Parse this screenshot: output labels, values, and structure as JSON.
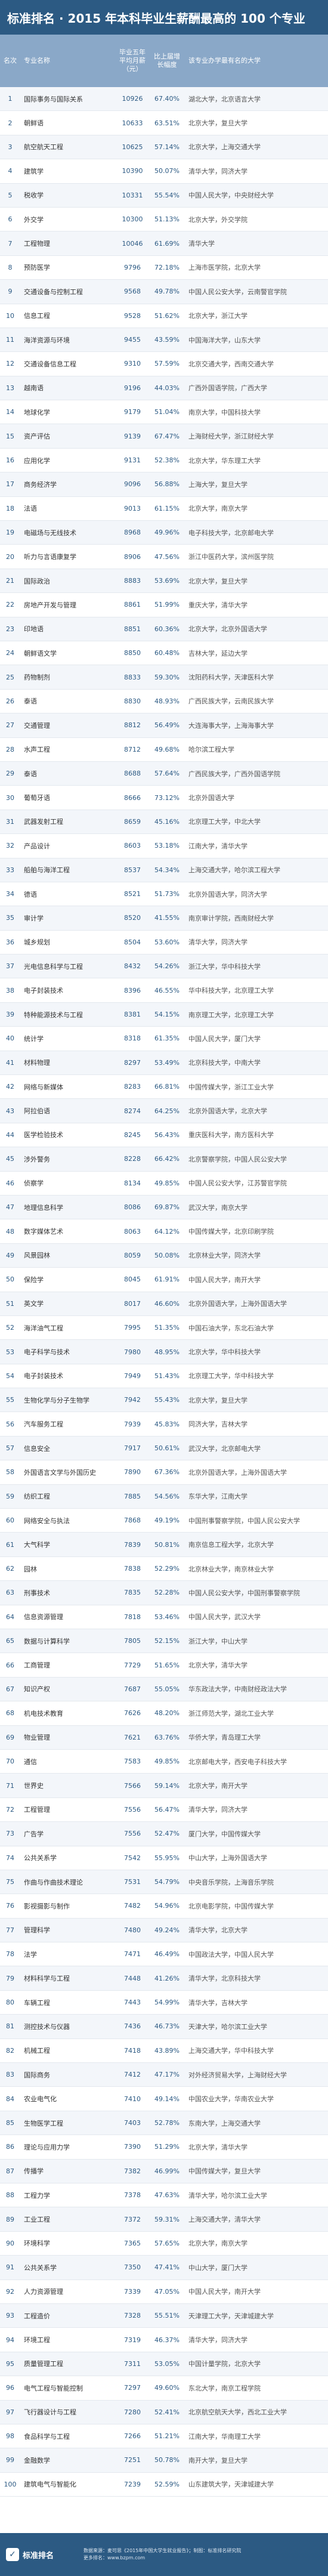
{
  "title": "标准排名 · 2015 年本科毕业生薪酬最高的 100 个专业",
  "header": {
    "rank": "名次",
    "major": "专业名称",
    "salary": "毕业五年平均月薪（元）",
    "ratio": "比上届增长幅度",
    "unis": "该专业办学最有名的大学"
  },
  "rows": [
    {
      "rank": "1",
      "major": "国际事务与国际关系",
      "salary": "10926",
      "ratio": "67.40%",
      "unis": "湖北大学，北京语言大学"
    },
    {
      "rank": "2",
      "major": "朝鲜语",
      "salary": "10633",
      "ratio": "63.51%",
      "unis": "北京大学，复旦大学"
    },
    {
      "rank": "3",
      "major": "航空航天工程",
      "salary": "10625",
      "ratio": "57.14%",
      "unis": "北京大学，上海交通大学"
    },
    {
      "rank": "4",
      "major": "建筑学",
      "salary": "10390",
      "ratio": "50.07%",
      "unis": "清华大学，同济大学"
    },
    {
      "rank": "5",
      "major": "税收学",
      "salary": "10331",
      "ratio": "55.54%",
      "unis": "中国人民大学，中央财经大学"
    },
    {
      "rank": "6",
      "major": "外交学",
      "salary": "10300",
      "ratio": "51.13%",
      "unis": "北京大学，外交学院"
    },
    {
      "rank": "7",
      "major": "工程物理",
      "salary": "10046",
      "ratio": "61.69%",
      "unis": "清华大学"
    },
    {
      "rank": "8",
      "major": "预防医学",
      "salary": "9796",
      "ratio": "72.18%",
      "unis": "上海市医学院，北京大学"
    },
    {
      "rank": "9",
      "major": "交通设备与控制工程",
      "salary": "9568",
      "ratio": "49.78%",
      "unis": "中国人民公安大学，云南警官学院"
    },
    {
      "rank": "10",
      "major": "信息工程",
      "salary": "9528",
      "ratio": "51.62%",
      "unis": "北京大学，浙江大学"
    },
    {
      "rank": "11",
      "major": "海洋资源与环境",
      "salary": "9455",
      "ratio": "43.59%",
      "unis": "中国海洋大学，山东大学"
    },
    {
      "rank": "12",
      "major": "交通设备信息工程",
      "salary": "9310",
      "ratio": "57.59%",
      "unis": "北京交通大学，西南交通大学"
    },
    {
      "rank": "13",
      "major": "越南语",
      "salary": "9196",
      "ratio": "44.03%",
      "unis": "广西外国语学院，广西大学"
    },
    {
      "rank": "14",
      "major": "地球化学",
      "salary": "9179",
      "ratio": "51.04%",
      "unis": "南京大学，中国科技大学"
    },
    {
      "rank": "15",
      "major": "资产评估",
      "salary": "9139",
      "ratio": "67.47%",
      "unis": "上海财经大学，浙江财经大学"
    },
    {
      "rank": "16",
      "major": "应用化学",
      "salary": "9131",
      "ratio": "52.38%",
      "unis": "北京大学，华东理工大学"
    },
    {
      "rank": "17",
      "major": "商务经济学",
      "salary": "9096",
      "ratio": "56.88%",
      "unis": "上海大学，复旦大学"
    },
    {
      "rank": "18",
      "major": "法语",
      "salary": "9013",
      "ratio": "61.15%",
      "unis": "北京大学，南京大学"
    },
    {
      "rank": "19",
      "major": "电磁场与无线技术",
      "salary": "8968",
      "ratio": "49.96%",
      "unis": "电子科技大学，北京邮电大学"
    },
    {
      "rank": "20",
      "major": "听力与言语康复学",
      "salary": "8906",
      "ratio": "47.56%",
      "unis": "浙江中医药大学，滨州医学院"
    },
    {
      "rank": "21",
      "major": "国际政治",
      "salary": "8883",
      "ratio": "53.69%",
      "unis": "北京大学，复旦大学"
    },
    {
      "rank": "22",
      "major": "房地产开发与管理",
      "salary": "8861",
      "ratio": "51.99%",
      "unis": "重庆大学，清华大学"
    },
    {
      "rank": "23",
      "major": "印地语",
      "salary": "8851",
      "ratio": "60.36%",
      "unis": "北京大学，北京外国语大学"
    },
    {
      "rank": "24",
      "major": "朝鲜语文学",
      "salary": "8850",
      "ratio": "60.48%",
      "unis": "吉林大学，延边大学"
    },
    {
      "rank": "25",
      "major": "药物制剂",
      "salary": "8833",
      "ratio": "59.30%",
      "unis": "沈阳药科大学，天津医科大学"
    },
    {
      "rank": "26",
      "major": "泰语",
      "salary": "8830",
      "ratio": "48.93%",
      "unis": "广西民族大学，云南民族大学"
    },
    {
      "rank": "27",
      "major": "交通管理",
      "salary": "8812",
      "ratio": "56.49%",
      "unis": "大连海事大学，上海海事大学"
    },
    {
      "rank": "28",
      "major": "水声工程",
      "salary": "8712",
      "ratio": "49.68%",
      "unis": "哈尔滨工程大学"
    },
    {
      "rank": "29",
      "major": "泰语",
      "salary": "8688",
      "ratio": "57.64%",
      "unis": "广西民族大学，广西外国语学院"
    },
    {
      "rank": "30",
      "major": "葡萄牙语",
      "salary": "8666",
      "ratio": "73.12%",
      "unis": "北京外国语大学"
    },
    {
      "rank": "31",
      "major": "武器发射工程",
      "salary": "8659",
      "ratio": "45.16%",
      "unis": "北京理工大学，中北大学"
    },
    {
      "rank": "32",
      "major": "产品设计",
      "salary": "8603",
      "ratio": "53.18%",
      "unis": "江南大学，清华大学"
    },
    {
      "rank": "33",
      "major": "船舶与海洋工程",
      "salary": "8537",
      "ratio": "54.34%",
      "unis": "上海交通大学，哈尔滨工程大学"
    },
    {
      "rank": "34",
      "major": "德语",
      "salary": "8521",
      "ratio": "51.73%",
      "unis": "北京外国语大学，同济大学"
    },
    {
      "rank": "35",
      "major": "审计学",
      "salary": "8520",
      "ratio": "41.55%",
      "unis": "南京审计学院，西南财经大学"
    },
    {
      "rank": "36",
      "major": "城乡规划",
      "salary": "8504",
      "ratio": "53.60%",
      "unis": "清华大学，同济大学"
    },
    {
      "rank": "37",
      "major": "光电信息科学与工程",
      "salary": "8432",
      "ratio": "54.26%",
      "unis": "浙江大学，华中科技大学"
    },
    {
      "rank": "38",
      "major": "电子封装技术",
      "salary": "8396",
      "ratio": "46.55%",
      "unis": "华中科技大学，北京理工大学"
    },
    {
      "rank": "39",
      "major": "特种能源技术与工程",
      "salary": "8381",
      "ratio": "54.15%",
      "unis": "南京理工大学，北京理工大学"
    },
    {
      "rank": "40",
      "major": "统计学",
      "salary": "8318",
      "ratio": "61.35%",
      "unis": "中国人民大学，厦门大学"
    },
    {
      "rank": "41",
      "major": "材料物理",
      "salary": "8297",
      "ratio": "53.49%",
      "unis": "北京科技大学，中南大学"
    },
    {
      "rank": "42",
      "major": "网络与新媒体",
      "salary": "8283",
      "ratio": "66.81%",
      "unis": "中国传媒大学，浙江工业大学"
    },
    {
      "rank": "43",
      "major": "阿拉伯语",
      "salary": "8274",
      "ratio": "64.25%",
      "unis": "北京外国语大学，北京大学"
    },
    {
      "rank": "44",
      "major": "医学检验技术",
      "salary": "8245",
      "ratio": "56.43%",
      "unis": "重庆医科大学，南方医科大学"
    },
    {
      "rank": "45",
      "major": "涉外警务",
      "salary": "8228",
      "ratio": "66.42%",
      "unis": "北京警察学院，中国人民公安大学"
    },
    {
      "rank": "46",
      "major": "侦察学",
      "salary": "8134",
      "ratio": "49.85%",
      "unis": "中国人民公安大学，江苏警官学院"
    },
    {
      "rank": "47",
      "major": "地理信息科学",
      "salary": "8086",
      "ratio": "69.87%",
      "unis": "武汉大学，南京大学"
    },
    {
      "rank": "48",
      "major": "数字媒体艺术",
      "salary": "8063",
      "ratio": "64.12%",
      "unis": "中国传媒大学，北京印刷学院"
    },
    {
      "rank": "49",
      "major": "风景园林",
      "salary": "8059",
      "ratio": "50.08%",
      "unis": "北京林业大学，同济大学"
    },
    {
      "rank": "50",
      "major": "保险学",
      "salary": "8045",
      "ratio": "61.91%",
      "unis": "中国人民大学，南开大学"
    },
    {
      "rank": "51",
      "major": "英文学",
      "salary": "8017",
      "ratio": "46.60%",
      "unis": "北京外国语大学，上海外国语大学"
    },
    {
      "rank": "52",
      "major": "海洋油气工程",
      "salary": "7995",
      "ratio": "51.35%",
      "unis": "中国石油大学，东北石油大学"
    },
    {
      "rank": "53",
      "major": "电子科学与技术",
      "salary": "7980",
      "ratio": "48.95%",
      "unis": "北京大学，华中科技大学"
    },
    {
      "rank": "54",
      "major": "电子封装技术",
      "salary": "7949",
      "ratio": "51.43%",
      "unis": "北京理工大学，华中科技大学"
    },
    {
      "rank": "55",
      "major": "生物化学与分子生物学",
      "salary": "7942",
      "ratio": "55.43%",
      "unis": "北京大学，复旦大学"
    },
    {
      "rank": "56",
      "major": "汽车服务工程",
      "salary": "7939",
      "ratio": "45.83%",
      "unis": "同济大学，吉林大学"
    },
    {
      "rank": "57",
      "major": "信息安全",
      "salary": "7917",
      "ratio": "50.61%",
      "unis": "武汉大学，北京邮电大学"
    },
    {
      "rank": "58",
      "major": "外国语言文学与外国历史",
      "salary": "7890",
      "ratio": "67.36%",
      "unis": "北京外国语大学，上海外国语大学"
    },
    {
      "rank": "59",
      "major": "纺织工程",
      "salary": "7885",
      "ratio": "54.56%",
      "unis": "东华大学，江南大学"
    },
    {
      "rank": "60",
      "major": "网络安全与执法",
      "salary": "7868",
      "ratio": "49.19%",
      "unis": "中国刑事警察学院，中国人民公安大学"
    },
    {
      "rank": "61",
      "major": "大气科学",
      "salary": "7839",
      "ratio": "50.81%",
      "unis": "南京信息工程大学，北京大学"
    },
    {
      "rank": "62",
      "major": "园林",
      "salary": "7838",
      "ratio": "52.29%",
      "unis": "北京林业大学，南京林业大学"
    },
    {
      "rank": "63",
      "major": "刑事技术",
      "salary": "7835",
      "ratio": "52.28%",
      "unis": "中国人民公安大学，中国刑事警察学院"
    },
    {
      "rank": "64",
      "major": "信息资源管理",
      "salary": "7818",
      "ratio": "53.46%",
      "unis": "中国人民大学，武汉大学"
    },
    {
      "rank": "65",
      "major": "数据与计算科学",
      "salary": "7805",
      "ratio": "52.15%",
      "unis": "浙江大学，中山大学"
    },
    {
      "rank": "66",
      "major": "工商管理",
      "salary": "7729",
      "ratio": "51.65%",
      "unis": "北京大学，清华大学"
    },
    {
      "rank": "67",
      "major": "知识产权",
      "salary": "7687",
      "ratio": "55.05%",
      "unis": "华东政法大学，中南财经政法大学"
    },
    {
      "rank": "68",
      "major": "机电技术教育",
      "salary": "7626",
      "ratio": "48.20%",
      "unis": "浙江师范大学，湖北工业大学"
    },
    {
      "rank": "69",
      "major": "物业管理",
      "salary": "7621",
      "ratio": "63.76%",
      "unis": "华侨大学，青岛理工大学"
    },
    {
      "rank": "70",
      "major": "通信",
      "salary": "7583",
      "ratio": "49.85%",
      "unis": "北京邮电大学，西安电子科技大学"
    },
    {
      "rank": "71",
      "major": "世界史",
      "salary": "7566",
      "ratio": "59.14%",
      "unis": "北京大学，南开大学"
    },
    {
      "rank": "72",
      "major": "工程管理",
      "salary": "7556",
      "ratio": "56.47%",
      "unis": "清华大学，同济大学"
    },
    {
      "rank": "73",
      "major": "广告学",
      "salary": "7556",
      "ratio": "52.47%",
      "unis": "厦门大学，中国传媒大学"
    },
    {
      "rank": "74",
      "major": "公共关系学",
      "salary": "7542",
      "ratio": "55.95%",
      "unis": "中山大学，上海外国语大学"
    },
    {
      "rank": "75",
      "major": "作曲与作曲技术理论",
      "salary": "7531",
      "ratio": "54.79%",
      "unis": "中央音乐学院，上海音乐学院"
    },
    {
      "rank": "76",
      "major": "影视摄影与制作",
      "salary": "7482",
      "ratio": "54.96%",
      "unis": "北京电影学院，中国传媒大学"
    },
    {
      "rank": "77",
      "major": "管理科学",
      "salary": "7480",
      "ratio": "49.24%",
      "unis": "清华大学，北京大学"
    },
    {
      "rank": "78",
      "major": "法学",
      "salary": "7471",
      "ratio": "46.49%",
      "unis": "中国政法大学，中国人民大学"
    },
    {
      "rank": "79",
      "major": "材料科学与工程",
      "salary": "7448",
      "ratio": "41.26%",
      "unis": "清华大学，北京科技大学"
    },
    {
      "rank": "80",
      "major": "车辆工程",
      "salary": "7443",
      "ratio": "54.99%",
      "unis": "清华大学，吉林大学"
    },
    {
      "rank": "81",
      "major": "测控技术与仪器",
      "salary": "7436",
      "ratio": "46.73%",
      "unis": "天津大学，哈尔滨工业大学"
    },
    {
      "rank": "82",
      "major": "机械工程",
      "salary": "7418",
      "ratio": "43.89%",
      "unis": "上海交通大学，华中科技大学"
    },
    {
      "rank": "83",
      "major": "国际商务",
      "salary": "7412",
      "ratio": "47.17%",
      "unis": "对外经济贸易大学，上海财经大学"
    },
    {
      "rank": "84",
      "major": "农业电气化",
      "salary": "7410",
      "ratio": "49.14%",
      "unis": "中国农业大学，华南农业大学"
    },
    {
      "rank": "85",
      "major": "生物医学工程",
      "salary": "7403",
      "ratio": "52.78%",
      "unis": "东南大学，上海交通大学"
    },
    {
      "rank": "86",
      "major": "理论与应用力学",
      "salary": "7390",
      "ratio": "51.29%",
      "unis": "北京大学，清华大学"
    },
    {
      "rank": "87",
      "major": "传播学",
      "salary": "7382",
      "ratio": "46.99%",
      "unis": "中国传媒大学，复旦大学"
    },
    {
      "rank": "88",
      "major": "工程力学",
      "salary": "7378",
      "ratio": "47.63%",
      "unis": "清华大学，哈尔滨工业大学"
    },
    {
      "rank": "89",
      "major": "工业工程",
      "salary": "7372",
      "ratio": "59.31%",
      "unis": "上海交通大学，清华大学"
    },
    {
      "rank": "90",
      "major": "环境科学",
      "salary": "7365",
      "ratio": "57.65%",
      "unis": "北京大学，南京大学"
    },
    {
      "rank": "91",
      "major": "公共关系学",
      "salary": "7350",
      "ratio": "47.41%",
      "unis": "中山大学，厦门大学"
    },
    {
      "rank": "92",
      "major": "人力资源管理",
      "salary": "7339",
      "ratio": "47.05%",
      "unis": "中国人民大学，南开大学"
    },
    {
      "rank": "93",
      "major": "工程造价",
      "salary": "7328",
      "ratio": "55.51%",
      "unis": "天津理工大学，天津城建大学"
    },
    {
      "rank": "94",
      "major": "环境工程",
      "salary": "7319",
      "ratio": "46.37%",
      "unis": "清华大学，同济大学"
    },
    {
      "rank": "95",
      "major": "质量管理工程",
      "salary": "7311",
      "ratio": "53.05%",
      "unis": "中国计量学院，北京大学"
    },
    {
      "rank": "96",
      "major": "电气工程与智能控制",
      "salary": "7297",
      "ratio": "49.60%",
      "unis": "东北大学，南京工程学院"
    },
    {
      "rank": "97",
      "major": "飞行器设计与工程",
      "salary": "7280",
      "ratio": "52.41%",
      "unis": "北京航空航天大学，西北工业大学"
    },
    {
      "rank": "98",
      "major": "食品科学与工程",
      "salary": "7266",
      "ratio": "51.21%",
      "unis": "江南大学，华南理工大学"
    },
    {
      "rank": "99",
      "major": "金融数学",
      "salary": "7251",
      "ratio": "50.78%",
      "unis": "南开大学，复旦大学"
    },
    {
      "rank": "100",
      "major": "建筑电气与智能化",
      "salary": "7239",
      "ratio": "52.59%",
      "unis": "山东建筑大学，天津城建大学"
    }
  ],
  "footer": {
    "logo": "标准排名",
    "note1": "数据来源：麦可思《2015年中国大学生就业报告》；制图：标准排名研究院",
    "note2": "更多排名：www.bzpm.com"
  },
  "colors": {
    "primary": "#2c5a83",
    "header": "#8aa8c8"
  }
}
